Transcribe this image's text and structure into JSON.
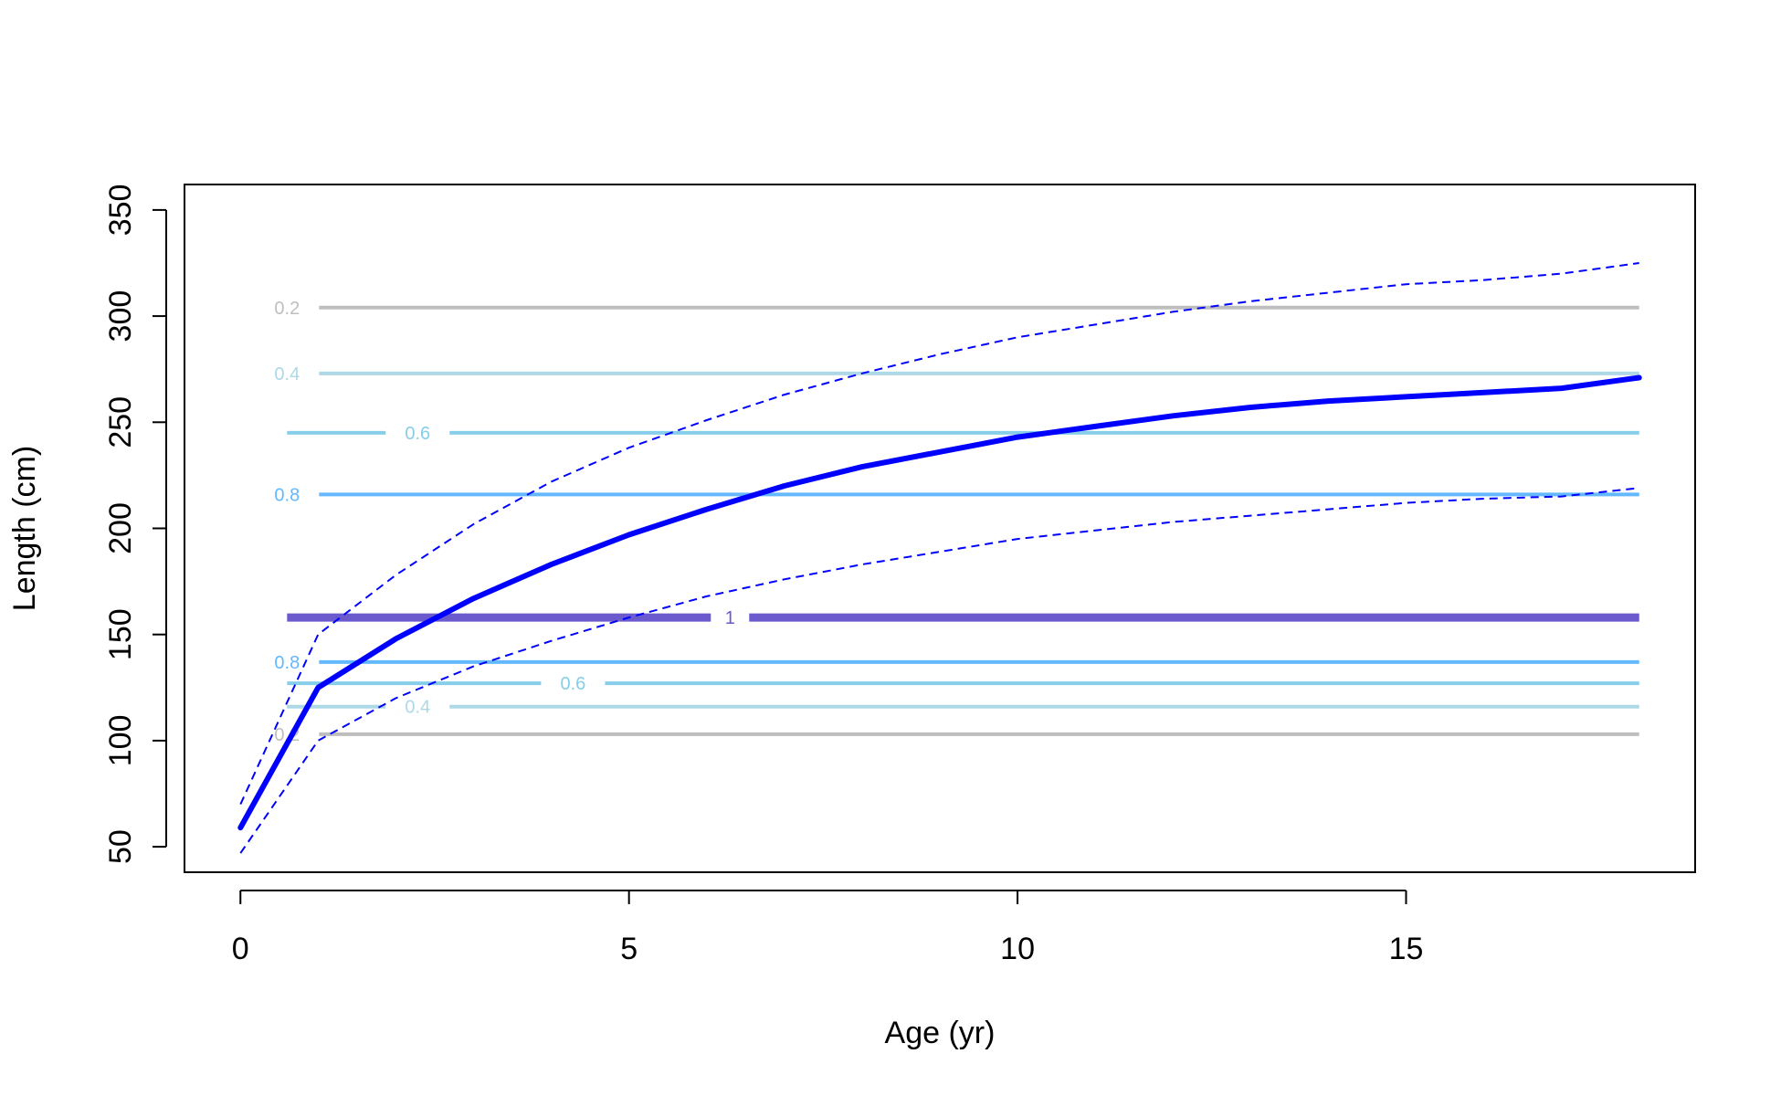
{
  "chart_data": {
    "type": "line",
    "xlabel": "Age (yr)",
    "ylabel": "Length (cm)",
    "xlim": [
      -0.72,
      18.72
    ],
    "ylim": [
      38,
      362
    ],
    "x_ticks": [
      0,
      5,
      10,
      15
    ],
    "y_ticks": [
      50,
      100,
      150,
      200,
      250,
      300,
      350
    ],
    "x_tick_labels": [
      "0",
      "5",
      "10",
      "15"
    ],
    "y_tick_labels": [
      "50",
      "100",
      "150",
      "200",
      "250",
      "300",
      "350"
    ],
    "grid": false,
    "legend": "none",
    "series": [
      {
        "role": "mean",
        "style": "solid",
        "color": "#0000FF",
        "x": [
          0,
          1,
          2,
          3,
          4,
          5,
          6,
          7,
          8,
          9,
          10,
          11,
          12,
          13,
          14,
          15,
          16,
          17,
          18
        ],
        "values": [
          59,
          125,
          148,
          167,
          183,
          197,
          209,
          220,
          229,
          236,
          243,
          248,
          253,
          257,
          260,
          262,
          264,
          266,
          271
        ]
      },
      {
        "role": "upper",
        "style": "dashed",
        "color": "#0000FF",
        "x": [
          0,
          1,
          2,
          3,
          4,
          5,
          6,
          7,
          8,
          9,
          10,
          11,
          12,
          13,
          14,
          15,
          16,
          17,
          18
        ],
        "values": [
          70,
          150,
          178,
          202,
          222,
          238,
          251,
          263,
          273,
          282,
          290,
          296,
          302,
          307,
          311,
          315,
          317,
          320,
          325
        ]
      },
      {
        "role": "lower",
        "style": "dashed",
        "color": "#0000FF",
        "x": [
          0,
          1,
          2,
          3,
          4,
          5,
          6,
          7,
          8,
          9,
          10,
          11,
          12,
          13,
          14,
          15,
          16,
          17,
          18
        ],
        "values": [
          47,
          100,
          120,
          135,
          147,
          158,
          168,
          176,
          183,
          189,
          195,
          199,
          203,
          206,
          209,
          212,
          214,
          215,
          219
        ]
      }
    ],
    "contours": [
      {
        "label": "0.2",
        "y": 304,
        "color": "#BEBEBE",
        "width": 4,
        "label_x": 0.6
      },
      {
        "label": "0.4",
        "y": 273,
        "color": "#ADD8E6",
        "width": 4,
        "label_x": 0.6
      },
      {
        "label": "0.6",
        "y": 245,
        "color": "#87CEEB",
        "width": 4,
        "label_x": 2.28
      },
      {
        "label": "0.8",
        "y": 216,
        "color": "#63B8FF",
        "width": 4,
        "label_x": 0.6
      },
      {
        "label": "1",
        "y": 158,
        "color": "#6A5ACD",
        "width": 9,
        "label_x": 6.3
      },
      {
        "label": "0.8",
        "y": 137,
        "color": "#63B8FF",
        "width": 4,
        "label_x": 0.6
      },
      {
        "label": "0.6",
        "y": 127,
        "color": "#87CEEB",
        "width": 4,
        "label_x": 4.28
      },
      {
        "label": "0.4",
        "y": 116,
        "color": "#ADD8E6",
        "width": 4,
        "label_x": 2.28
      },
      {
        "label": "0.2",
        "y": 103,
        "color": "#BEBEBE",
        "width": 4,
        "label_x": 0.6
      }
    ]
  }
}
